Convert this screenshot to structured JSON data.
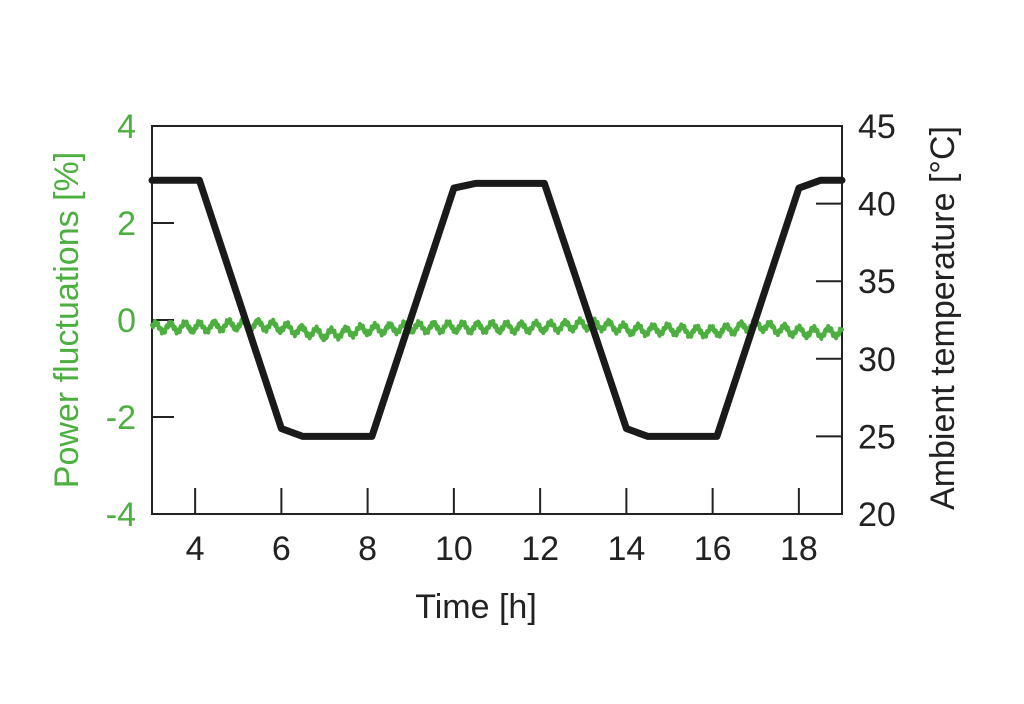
{
  "chart_data": {
    "type": "line",
    "title": "",
    "xlabel": "Time [h]",
    "ylabel_left": "Power fluctuations [%]",
    "ylabel_right": "Ambient temperature [°C]",
    "xlim": [
      3,
      19
    ],
    "ylim_left": [
      -4,
      4
    ],
    "ylim_right": [
      20,
      45
    ],
    "x_ticks": [
      4,
      6,
      8,
      10,
      12,
      14,
      16,
      18
    ],
    "y_left_ticks": [
      -4,
      -2,
      0,
      2,
      4
    ],
    "y_left_tick_labels": [
      "-4",
      "-2",
      "0",
      "2",
      "4"
    ],
    "y_right_ticks": [
      20,
      25,
      30,
      35,
      40,
      45
    ],
    "grid": false,
    "colors": {
      "left_axis": "#4caf3f",
      "power_series": "#4caf3f",
      "temperature_series": "#1a1a1a",
      "axes": "#222222"
    },
    "series": [
      {
        "axis": "left",
        "x": [
          3.0,
          4.0,
          5.0,
          5.5,
          6.0,
          7.0,
          8.0,
          9.0,
          10.0,
          11.0,
          12.0,
          13.0,
          13.5,
          14.0,
          15.0,
          16.0,
          17.0,
          18.0,
          19.0
        ],
        "values": [
          -0.15,
          -0.15,
          -0.1,
          -0.1,
          -0.15,
          -0.3,
          -0.2,
          -0.15,
          -0.15,
          -0.15,
          -0.15,
          -0.1,
          -0.1,
          -0.2,
          -0.2,
          -0.25,
          -0.1,
          -0.25,
          -0.25
        ]
      },
      {
        "axis": "right",
        "x": [
          3.0,
          4.1,
          6.0,
          6.5,
          8.0,
          8.1,
          10.0,
          10.5,
          12.0,
          12.1,
          14.0,
          14.5,
          16.0,
          16.1,
          18.0,
          18.5,
          19.0
        ],
        "values": [
          41.5,
          41.5,
          25.5,
          25.0,
          25.0,
          25.0,
          41.0,
          41.3,
          41.3,
          41.3,
          25.5,
          25.0,
          25.0,
          25.0,
          41.0,
          41.5,
          41.5
        ]
      }
    ]
  }
}
